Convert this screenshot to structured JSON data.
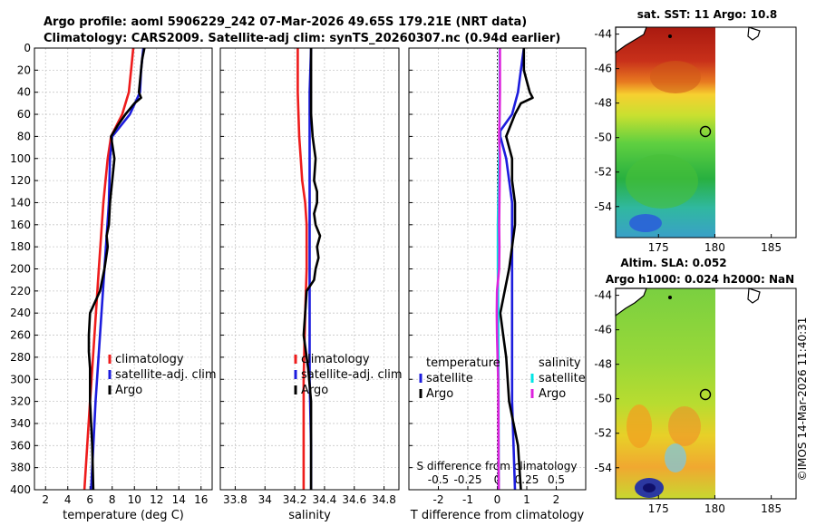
{
  "header": {
    "line1": "Argo profile: aoml 5906229_242 07-Mar-2026 49.65S 179.21E (NRT data)",
    "line2": "Climatology: CARS2009. Satellite-adj clim: synTS_20260307.nc (0.94d earlier)"
  },
  "depth_ticks": [
    "0",
    "20",
    "40",
    "60",
    "80",
    "100",
    "120",
    "140",
    "160",
    "180",
    "200",
    "220",
    "240",
    "260",
    "280",
    "300",
    "320",
    "340",
    "360",
    "380",
    "400"
  ],
  "chart_data": [
    {
      "type": "line",
      "id": "temperature",
      "xlabel": "temperature (deg C)",
      "xlim": [
        1,
        17
      ],
      "ylim": [
        0,
        400
      ],
      "xticks": [
        "2",
        "4",
        "6",
        "8",
        "10",
        "12",
        "14",
        "16"
      ],
      "legend": [
        "climatology",
        "satellite-adj. clim",
        "Argo"
      ],
      "series": [
        {
          "name": "climatology",
          "color": "#ee1c1c",
          "depth": [
            0,
            20,
            40,
            60,
            80,
            100,
            140,
            200,
            260,
            320,
            400
          ],
          "values": [
            9.9,
            9.7,
            9.5,
            8.9,
            7.9,
            7.6,
            7.2,
            6.8,
            6.4,
            6.0,
            5.5
          ]
        },
        {
          "name": "satellite-adj. clim",
          "color": "#1c1cdd",
          "depth": [
            0,
            20,
            40,
            60,
            80,
            100,
            140,
            200,
            260,
            320,
            400
          ],
          "values": [
            10.8,
            10.6,
            10.5,
            9.6,
            8.0,
            7.8,
            7.7,
            7.3,
            6.9,
            6.5,
            6.1
          ]
        },
        {
          "name": "Argo",
          "color": "#000000",
          "depth": [
            0,
            10,
            20,
            30,
            40,
            45,
            50,
            60,
            70,
            80,
            100,
            120,
            140,
            160,
            170,
            180,
            200,
            220,
            240,
            260,
            275,
            290,
            320,
            360,
            400
          ],
          "values": [
            10.9,
            10.7,
            10.6,
            10.5,
            10.4,
            10.6,
            10.0,
            9.2,
            8.5,
            7.9,
            8.2,
            8.0,
            7.8,
            7.7,
            7.5,
            7.6,
            7.3,
            6.9,
            6.0,
            5.9,
            5.9,
            6.0,
            6.0,
            6.2,
            6.3
          ]
        }
      ]
    },
    {
      "type": "line",
      "id": "salinity",
      "xlabel": "salinity",
      "xlim": [
        33.7,
        34.9
      ],
      "ylim": [
        0,
        400
      ],
      "xticks": [
        "33.8",
        "34",
        "34.2",
        "34.4",
        "34.6",
        "34.8"
      ],
      "legend": [
        "climatology",
        "satellite-adj. clim",
        "Argo"
      ],
      "series": [
        {
          "name": "climatology",
          "color": "#ee1c1c",
          "depth": [
            0,
            40,
            80,
            100,
            120,
            140,
            160,
            200,
            240,
            300,
            360,
            400
          ],
          "values": [
            34.22,
            34.22,
            34.23,
            34.24,
            34.25,
            34.27,
            34.28,
            34.28,
            34.27,
            34.26,
            34.26,
            34.26
          ]
        },
        {
          "name": "satellite-adj. clim",
          "color": "#1c1cdd",
          "depth": [
            0,
            40,
            80,
            100,
            120,
            140,
            160,
            200,
            240,
            300,
            360,
            400
          ],
          "values": [
            34.31,
            34.3,
            34.3,
            34.3,
            34.3,
            34.3,
            34.3,
            34.3,
            34.3,
            34.3,
            34.31,
            34.31
          ]
        },
        {
          "name": "Argo",
          "color": "#000000",
          "depth": [
            0,
            20,
            40,
            60,
            80,
            90,
            100,
            120,
            130,
            140,
            150,
            160,
            170,
            180,
            190,
            200,
            210,
            220,
            240,
            260,
            280,
            290,
            320,
            360,
            400
          ],
          "values": [
            34.31,
            34.31,
            34.31,
            34.31,
            34.32,
            34.33,
            34.34,
            34.33,
            34.35,
            34.35,
            34.33,
            34.34,
            34.37,
            34.35,
            34.36,
            34.34,
            34.33,
            34.28,
            34.27,
            34.26,
            34.28,
            34.29,
            34.31,
            34.31,
            34.31
          ]
        }
      ]
    },
    {
      "type": "line",
      "id": "difference",
      "xlabel": "T difference from climatology",
      "xlabel_top": "S difference from climatology",
      "xlim": [
        -3,
        3
      ],
      "ylim": [
        0,
        400
      ],
      "xticks": [
        "-2",
        "-1",
        "0",
        "1",
        "2"
      ],
      "xticks_s": [
        "-0.5",
        "-0.25",
        "0",
        "0.25",
        "0.5"
      ],
      "legend_t_title": "temperature",
      "legend_s_title": "salinity",
      "legend_t": [
        "satellite",
        "Argo"
      ],
      "legend_s": [
        "satellite",
        "Argo"
      ],
      "series": [
        {
          "name": "T satellite",
          "color": "#1c1cdd",
          "depth": [
            0,
            20,
            40,
            60,
            75,
            80,
            100,
            140,
            200,
            260,
            320,
            400
          ],
          "values": [
            0.9,
            0.8,
            0.7,
            0.5,
            0.1,
            0.1,
            0.3,
            0.5,
            0.5,
            0.5,
            0.5,
            0.6
          ]
        },
        {
          "name": "T Argo",
          "color": "#000000",
          "depth": [
            0,
            20,
            30,
            40,
            45,
            50,
            60,
            80,
            100,
            120,
            140,
            160,
            180,
            200,
            240,
            260,
            280,
            320,
            360,
            400
          ],
          "values": [
            0.9,
            0.9,
            1.0,
            1.1,
            1.2,
            0.8,
            0.6,
            0.3,
            0.5,
            0.5,
            0.6,
            0.6,
            0.5,
            0.4,
            0.1,
            0.2,
            0.3,
            0.4,
            0.7,
            0.8
          ]
        },
        {
          "name": "S satellite",
          "color": "#00e6e6",
          "depth": [
            0,
            40,
            80,
            100,
            140,
            160,
            200,
            240,
            300,
            400
          ],
          "values": [
            0.08,
            0.08,
            0.07,
            0.06,
            0.03,
            0.02,
            0.02,
            0.03,
            0.04,
            0.05
          ]
        },
        {
          "name": "S Argo",
          "color": "#dd22dd",
          "depth": [
            0,
            40,
            60,
            80,
            100,
            120,
            160,
            180,
            200,
            220,
            240,
            260,
            280,
            300,
            400
          ],
          "values": [
            0.09,
            0.09,
            0.08,
            0.06,
            0.09,
            0.08,
            0.06,
            0.07,
            0.06,
            -0.01,
            -0.02,
            -0.01,
            0.01,
            0.03,
            0.05
          ]
        }
      ]
    }
  ],
  "maps": {
    "sst": {
      "title": "sat. SST: 11 Argo: 10.8",
      "yticks": [
        "-44",
        "-46",
        "-48",
        "-50",
        "-52",
        "-54"
      ],
      "xticks": [
        "175",
        "180",
        "185"
      ]
    },
    "sla": {
      "title1": "Altim. SLA: 0.052",
      "title2": "Argo h1000: 0.024 h2000: NaN",
      "yticks": [
        "-44",
        "-46",
        "-48",
        "-50",
        "-52",
        "-54"
      ],
      "xticks": [
        "175",
        "180",
        "185"
      ]
    }
  },
  "footer": "©IMOS 14-Mar-2026 11:40:31"
}
